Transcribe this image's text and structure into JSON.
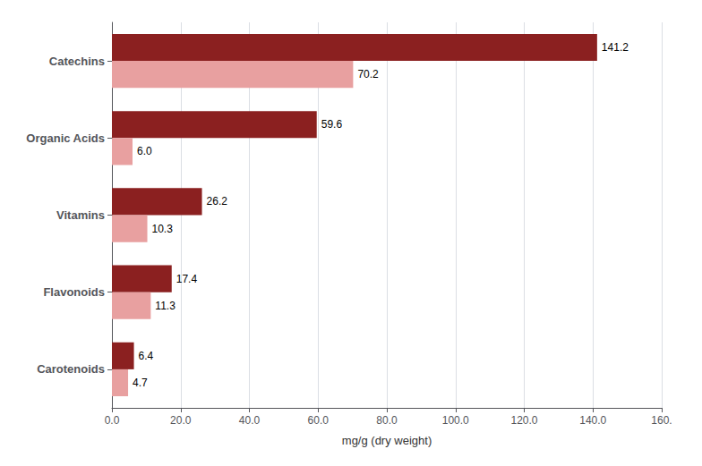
{
  "chart_data": {
    "type": "bar",
    "orientation": "horizontal",
    "xlabel": "mg/g (dry weight)",
    "categories": [
      "Catechins",
      "Organic Acids",
      "Vitamins",
      "Flavonoids",
      "Carotenoids"
    ],
    "series": [
      {
        "color": "#8B2020",
        "values": [
          141.2,
          59.6,
          26.2,
          17.4,
          6.4
        ],
        "value_labels": [
          "141.2",
          "59.6",
          "26.2",
          "17.4",
          "6.4"
        ]
      },
      {
        "color": "#E8A0A0",
        "values": [
          70.2,
          6.0,
          10.3,
          11.3,
          4.7
        ],
        "value_labels": [
          "70.2",
          "6.0",
          "10.3",
          "11.3",
          "4.7"
        ]
      }
    ],
    "xlim": [
      0,
      160
    ],
    "xticks": [
      {
        "value": 0,
        "label": "0.0"
      },
      {
        "value": 20,
        "label": "20.0"
      },
      {
        "value": 40,
        "label": "40.0"
      },
      {
        "value": 60,
        "label": "60.0"
      },
      {
        "value": 80,
        "label": "80.0"
      },
      {
        "value": 100,
        "label": "100.0"
      },
      {
        "value": 120,
        "label": "120.0"
      },
      {
        "value": 140,
        "label": "140.0"
      },
      {
        "value": 160,
        "label": "160."
      }
    ],
    "grid": true,
    "data_labels": true
  }
}
